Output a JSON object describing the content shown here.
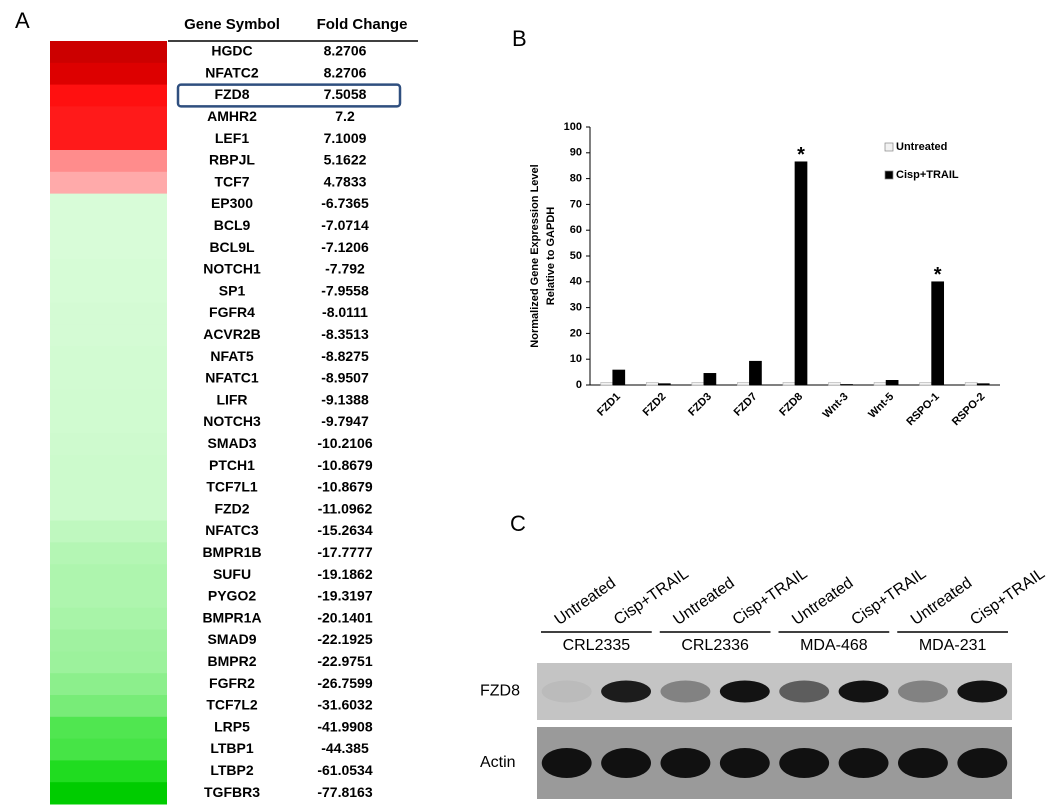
{
  "panel_labels": [
    "A",
    "B",
    "C"
  ],
  "table": {
    "headers": [
      "Gene Symbol",
      "Fold Change"
    ],
    "highlight_row": 2,
    "rows": [
      [
        "HGDC",
        8.2706
      ],
      [
        "NFATC2",
        8.2706
      ],
      [
        "FZD8",
        7.5058
      ],
      [
        "AMHR2",
        7.2
      ],
      [
        "LEF1",
        7.1009
      ],
      [
        "RBPJL",
        5.1622
      ],
      [
        "TCF7",
        4.7833
      ],
      [
        "EP300",
        -6.7365
      ],
      [
        "BCL9",
        -7.0714
      ],
      [
        "BCL9L",
        -7.1206
      ],
      [
        "NOTCH1",
        -7.792
      ],
      [
        "SP1",
        -7.9558
      ],
      [
        "FGFR4",
        -8.0111
      ],
      [
        "ACVR2B",
        -8.3513
      ],
      [
        "NFAT5",
        -8.8275
      ],
      [
        "NFATC1",
        -8.9507
      ],
      [
        "LIFR",
        -9.1388
      ],
      [
        "NOTCH3",
        -9.7947
      ],
      [
        "SMAD3",
        -10.2106
      ],
      [
        "PTCH1",
        -10.8679
      ],
      [
        "TCF7L1",
        -10.8679
      ],
      [
        "FZD2",
        -11.0962
      ],
      [
        "NFATC3",
        -15.2634
      ],
      [
        "BMPR1B",
        -17.7777
      ],
      [
        "SUFU",
        -19.1862
      ],
      [
        "PYGO2",
        -19.3197
      ],
      [
        "BMPR1A",
        -20.1401
      ],
      [
        "SMAD9",
        -22.1925
      ],
      [
        "BMPR2",
        -22.9751
      ],
      [
        "FGFR2",
        -26.7599
      ],
      [
        "TCF7L2",
        -31.6032
      ],
      [
        "LRP5",
        -41.9908
      ],
      [
        "LTBP1",
        -44.385
      ],
      [
        "LTBP2",
        -61.0534
      ],
      [
        "TGFBR3",
        -77.8163
      ]
    ],
    "colors": [
      "#cc0000",
      "#dd0000",
      "#ff1010",
      "#ff1a1a",
      "#ff1a1a",
      "#ff8c8c",
      "#ffaaaa",
      "#d8fcd8",
      "#d8fcd8",
      "#d8fcd8",
      "#d6fcd6",
      "#d6fcd6",
      "#d4fbd4",
      "#d4fbd4",
      "#d2fbd2",
      "#d2fbd2",
      "#d0fbd0",
      "#d0fbd0",
      "#ceface",
      "#ccfacc",
      "#ccfacc",
      "#ccfacc",
      "#bff8bf",
      "#b4f6b4",
      "#aef5ae",
      "#aef5ae",
      "#a8f4a8",
      "#a0f2a0",
      "#9cf29c",
      "#8cef8c",
      "#78ec78",
      "#50e650",
      "#46e446",
      "#20dc20",
      "#00cc00"
    ]
  },
  "chart_data": {
    "type": "bar",
    "ylabel": [
      "Normalized Gene Expression Level",
      "Relative to GAPDH"
    ],
    "categories": [
      "FZD1",
      "FZD2",
      "FZD3",
      "FZD7",
      "FZD8",
      "Wnt-3",
      "Wnt-5",
      "RSPO-1",
      "RSPO-2"
    ],
    "series": [
      {
        "name": "Untreated",
        "color": "#f2f2f2",
        "values": [
          1,
          1,
          1,
          1,
          1,
          1,
          1,
          1,
          1
        ]
      },
      {
        "name": "Cisp+TRAIL",
        "color": "#000000",
        "values": [
          5.8,
          0.5,
          4.5,
          9.2,
          86.5,
          0.2,
          1.8,
          40,
          0.5
        ]
      }
    ],
    "ylim": [
      0,
      100
    ],
    "yticks": [
      0,
      10,
      20,
      30,
      40,
      50,
      60,
      70,
      80,
      90,
      100
    ],
    "annotations": [
      {
        "label": "*",
        "category": "FZD8"
      },
      {
        "label": "*",
        "category": "RSPO-1"
      }
    ]
  },
  "blot": {
    "lanes": [
      "Untreated",
      "Cisp+TRAIL",
      "Untreated",
      "Cisp+TRAIL",
      "Untreated",
      "Cisp+TRAIL",
      "Untreated",
      "Cisp+TRAIL"
    ],
    "groups": [
      "CRL2335",
      "CRL2336",
      "MDA-468",
      "MDA-231"
    ],
    "rows": [
      "FZD8",
      "Actin"
    ]
  }
}
